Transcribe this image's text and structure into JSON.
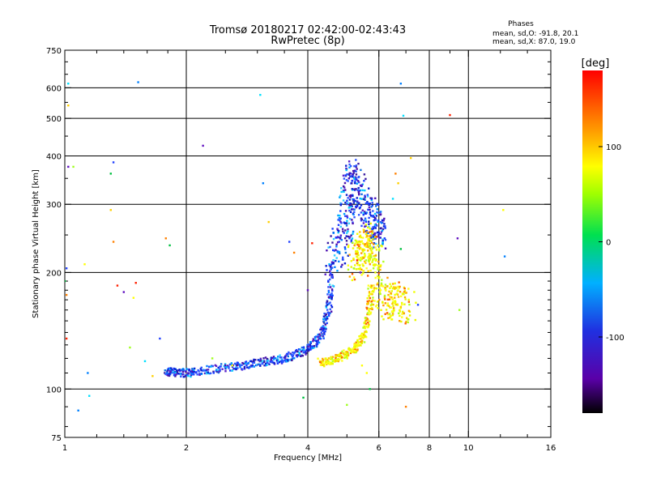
{
  "chart_data": {
    "type": "scatter",
    "title": "Tromsø 20180217 02:42:00-02:43:43",
    "subtitle": "RwPretec (8p)",
    "xlabel": "Frequency [MHz]",
    "ylabel": "Stationary phase Virtual Height [km]",
    "x_scale": "log",
    "y_scale": "log",
    "xlim": [
      1,
      16
    ],
    "ylim": [
      75,
      750
    ],
    "x_ticks": [
      1,
      2,
      4,
      6,
      8,
      10,
      16
    ],
    "x_tick_labels": [
      "1",
      "2",
      "4",
      "6",
      "8",
      "10",
      "16"
    ],
    "x_grid": [
      2,
      4,
      6,
      8,
      10
    ],
    "y_ticks": [
      75,
      100,
      200,
      300,
      400,
      500,
      600,
      750
    ],
    "y_tick_labels": [
      "75",
      "100",
      "200",
      "300",
      "400",
      "500",
      "600",
      "750"
    ],
    "y_grid": [
      100,
      200,
      300,
      400,
      500,
      600
    ],
    "grid": true,
    "legend": {
      "title": "Phases",
      "line1": "mean, sd,O: -91.8, 20.1",
      "line2": "mean, sd,X: 87.0, 19.0"
    },
    "colorbar": {
      "label": "[deg]",
      "min": -180,
      "max": 180,
      "ticks": [
        100,
        0,
        -100
      ],
      "tick_labels": [
        "100",
        "0",
        "-100"
      ]
    },
    "traces": [
      {
        "mode": "O",
        "branch": "E-F1",
        "x": [
          1.78,
          1.85,
          1.95,
          2.05,
          2.2,
          2.4,
          2.6,
          2.8,
          3.0,
          3.2,
          3.4,
          3.6,
          3.8,
          4.0,
          4.15,
          4.3,
          4.4,
          4.5,
          4.55,
          4.6
        ],
        "y": [
          110,
          111,
          110,
          110,
          112,
          113,
          114,
          115,
          117,
          118,
          119,
          121,
          124,
          127,
          131,
          137,
          145,
          160,
          180,
          215
        ]
      },
      {
        "mode": "O",
        "branch": "F2",
        "x": [
          4.6,
          4.75,
          4.95,
          5.0,
          5.05,
          5.15,
          5.3,
          5.5,
          5.7,
          5.85,
          5.95,
          6.0
        ],
        "y": [
          215,
          232,
          250,
          285,
          320,
          360,
          330,
          300,
          280,
          270,
          260,
          255
        ]
      },
      {
        "mode": "X",
        "branch": "E-F1",
        "x": [
          4.3,
          4.5,
          4.7,
          4.9,
          5.1,
          5.3,
          5.5,
          5.6,
          5.7,
          5.75
        ],
        "y": [
          117,
          118,
          120,
          122,
          125,
          130,
          136,
          148,
          165,
          185
        ]
      },
      {
        "mode": "X",
        "branch": "F2",
        "x": [
          5.2,
          5.35,
          5.45,
          5.6,
          5.75,
          5.9,
          6.1,
          6.3,
          6.5,
          6.8,
          7.2
        ],
        "y": [
          210,
          218,
          230,
          242,
          228,
          215,
          175,
          168,
          170,
          165,
          160
        ]
      }
    ],
    "scatter_points": [
      [
        1.02,
        615
      ],
      [
        1.02,
        540
      ],
      [
        1.01,
        205
      ],
      [
        1.01,
        175
      ],
      [
        1.0,
        190
      ],
      [
        1.01,
        135
      ],
      [
        1.02,
        375
      ],
      [
        1.05,
        375
      ],
      [
        1.12,
        210
      ],
      [
        1.14,
        110
      ],
      [
        1.15,
        96
      ],
      [
        1.3,
        290
      ],
      [
        1.32,
        385
      ],
      [
        1.32,
        240
      ],
      [
        1.3,
        360
      ],
      [
        1.35,
        185
      ],
      [
        1.4,
        178
      ],
      [
        1.45,
        128
      ],
      [
        1.48,
        172
      ],
      [
        1.52,
        620
      ],
      [
        1.58,
        118
      ],
      [
        1.65,
        108
      ],
      [
        1.72,
        135
      ],
      [
        1.78,
        245
      ],
      [
        1.82,
        235
      ],
      [
        1.5,
        188
      ],
      [
        2.2,
        425
      ],
      [
        2.32,
        120
      ],
      [
        2.6,
        115
      ],
      [
        3.1,
        340
      ],
      [
        3.05,
        575
      ],
      [
        3.2,
        270
      ],
      [
        3.6,
        240
      ],
      [
        3.7,
        225
      ],
      [
        3.9,
        95
      ],
      [
        4.1,
        238
      ],
      [
        4.0,
        180
      ],
      [
        5.0,
        91
      ],
      [
        5.45,
        115
      ],
      [
        6.8,
        615
      ],
      [
        6.9,
        508
      ],
      [
        7.2,
        395
      ],
      [
        7.5,
        165
      ],
      [
        7.0,
        90
      ],
      [
        6.8,
        230
      ],
      [
        9.0,
        510
      ],
      [
        9.4,
        245
      ],
      [
        9.5,
        160
      ],
      [
        12.2,
        290
      ],
      [
        12.3,
        220
      ],
      [
        6.5,
        310
      ],
      [
        6.7,
        340
      ],
      [
        6.2,
        245
      ],
      [
        6.6,
        360
      ],
      [
        5.7,
        100
      ],
      [
        5.3,
        215
      ],
      [
        5.4,
        200
      ],
      [
        5.2,
        205
      ],
      [
        5.6,
        110
      ],
      [
        1.08,
        88
      ]
    ]
  }
}
